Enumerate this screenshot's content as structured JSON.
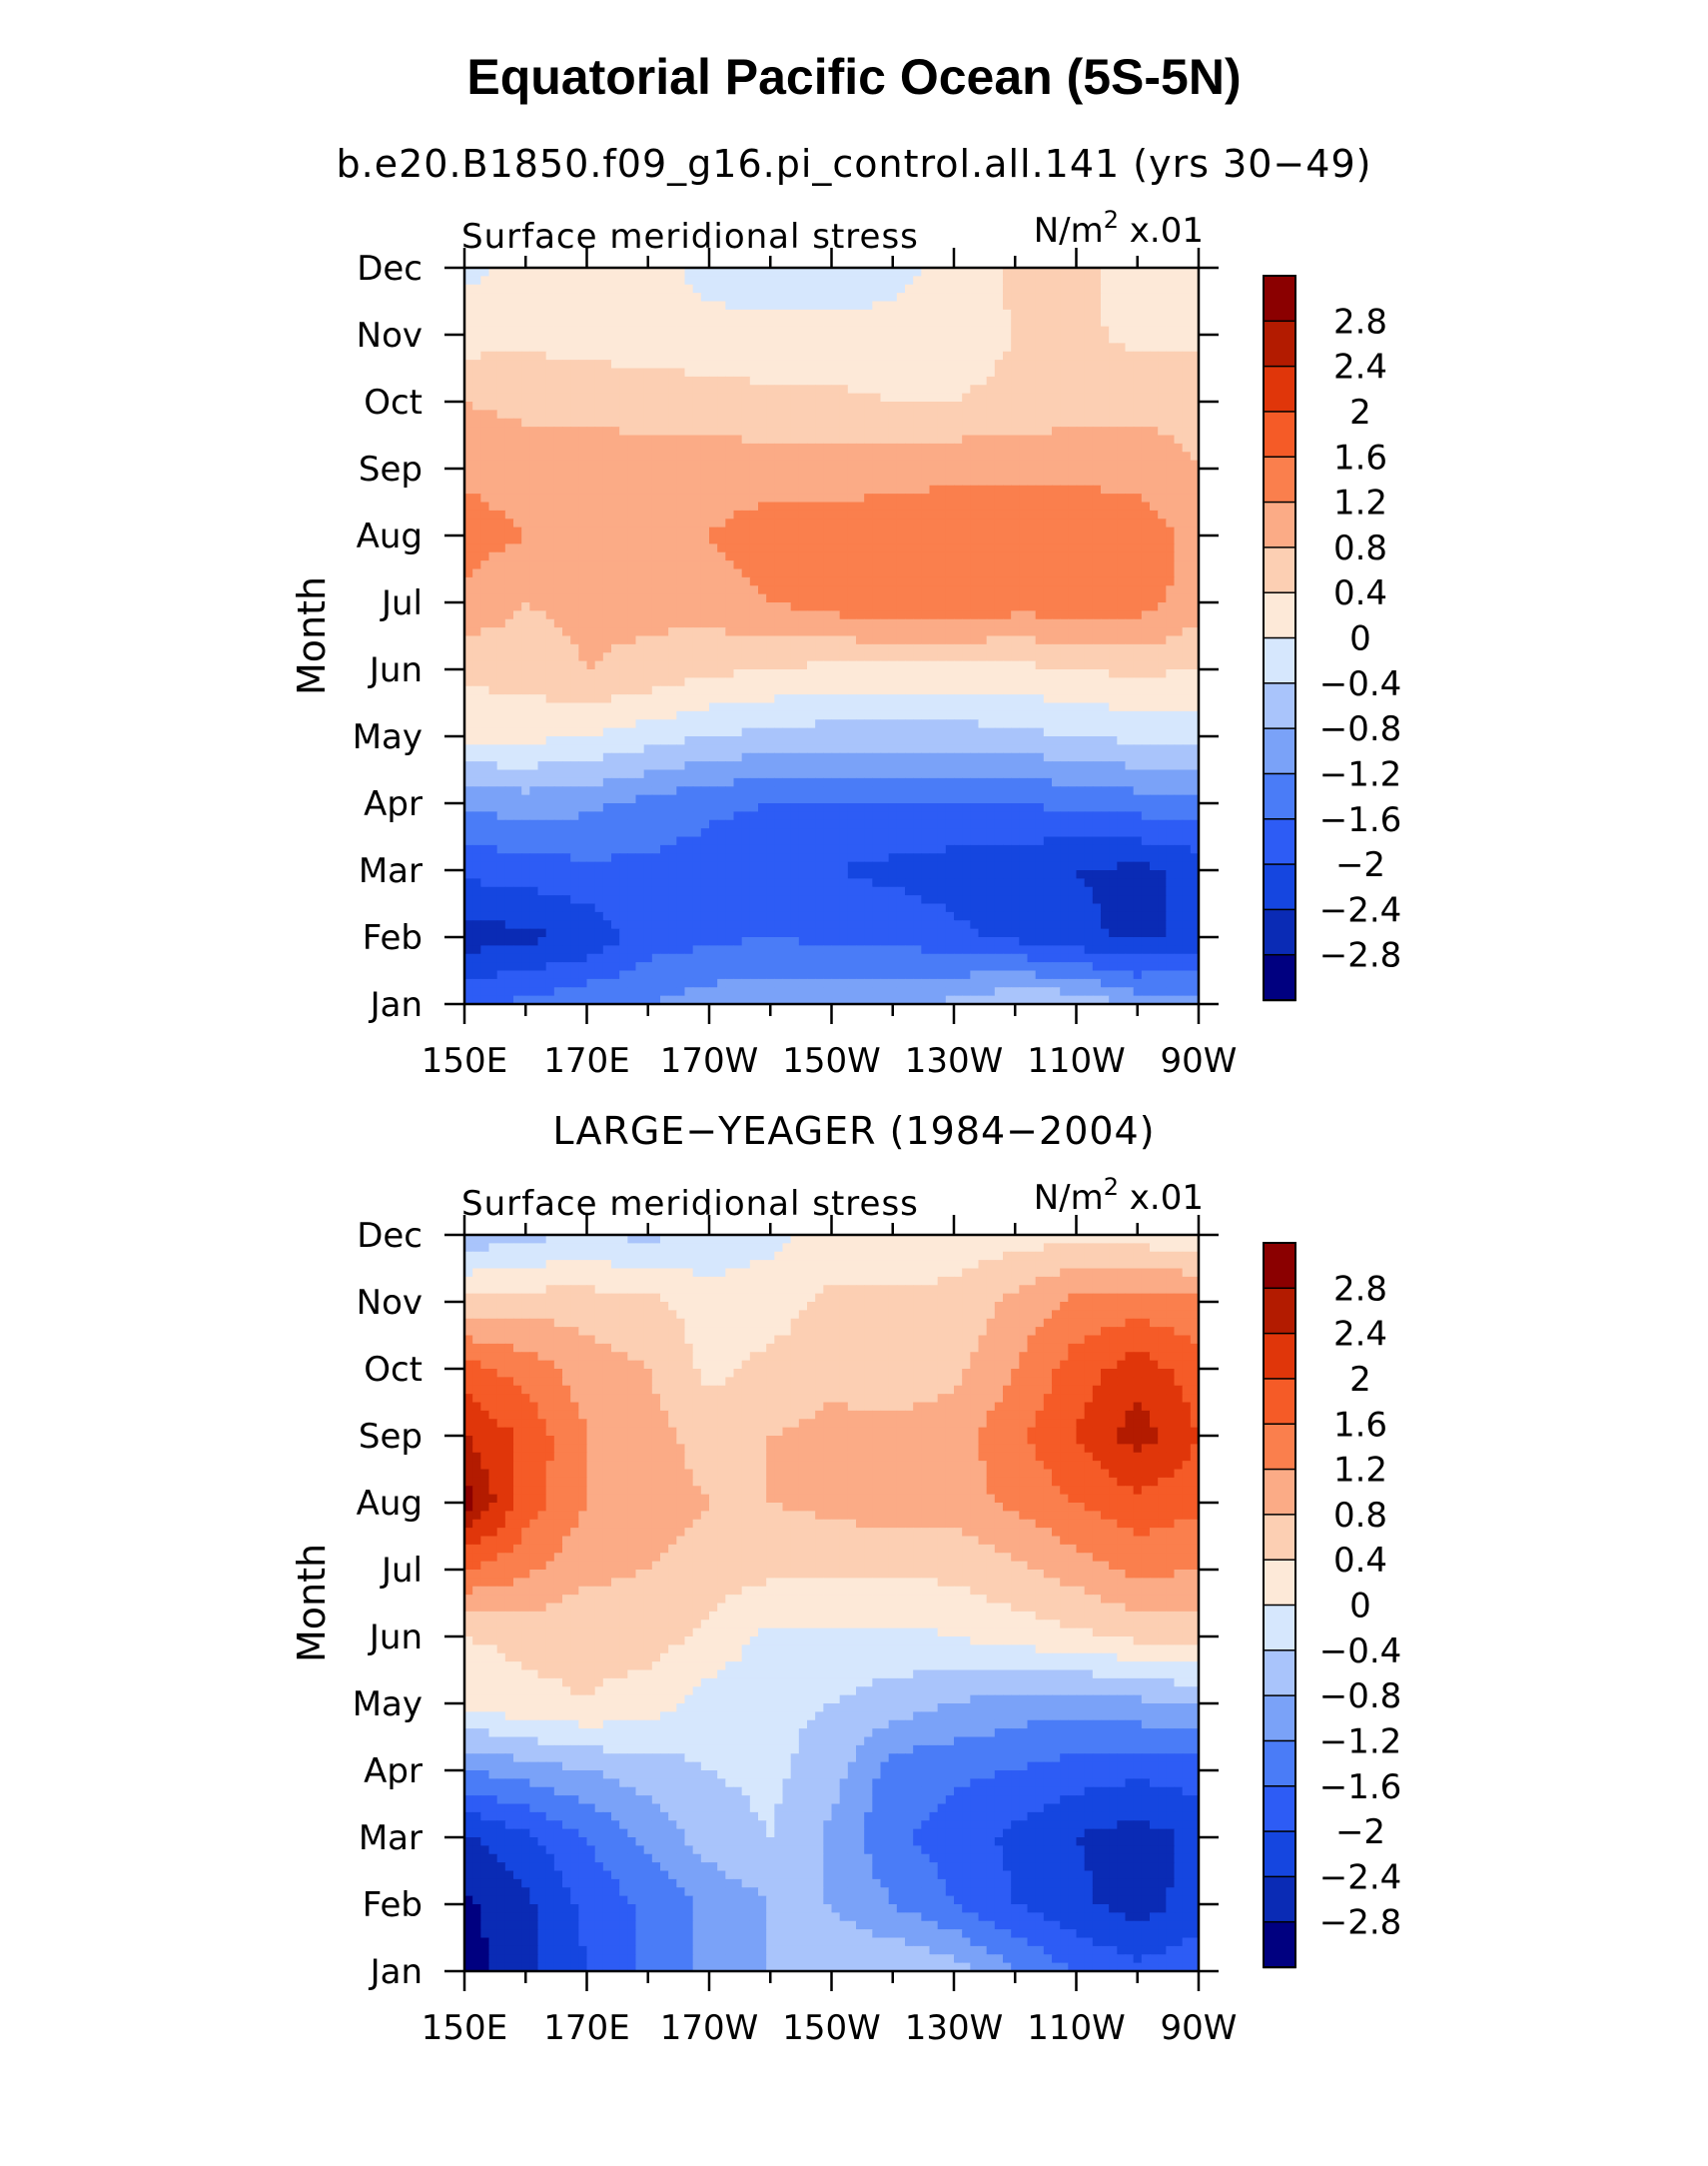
{
  "figure": {
    "title": "Equatorial Pacific Ocean (5S-5N)"
  },
  "colors": {
    "levels": [
      -2.8,
      -2.4,
      -2.0,
      -1.6,
      -1.2,
      -0.8,
      -0.4,
      0,
      0.4,
      0.8,
      1.2,
      1.6,
      2.0,
      2.4,
      2.8
    ],
    "fills": [
      "#000080",
      "#0a2bb5",
      "#1546e0",
      "#2d5cf5",
      "#4a7cf7",
      "#7aa2f8",
      "#a9c4fb",
      "#d6e7fd",
      "#fde9d8",
      "#fccfb3",
      "#fbab86",
      "#fa7f4d",
      "#f55b27",
      "#e0360a",
      "#b31b00",
      "#8b0000"
    ]
  },
  "chart_data": [
    {
      "type": "heatmap",
      "title": "b.e20.B1850.f09_g16.pi_control.all.141 (yrs 30−49)",
      "subtitle": "Surface meridional stress",
      "units": "N/m² x.01",
      "units_base": "N/m",
      "units_sup": "2",
      "units_suffix": " x.01",
      "ylabel": "Month",
      "xlabel": "",
      "x_ticks": [
        "150E",
        "170E",
        "170W",
        "150W",
        "130W",
        "110W",
        "90W"
      ],
      "x_tick_deg": [
        150,
        170,
        190,
        210,
        230,
        250,
        270
      ],
      "xlim": [
        150,
        270
      ],
      "y_ticks": [
        "Jan",
        "Feb",
        "Mar",
        "Apr",
        "May",
        "Jun",
        "Jul",
        "Aug",
        "Sep",
        "Oct",
        "Nov",
        "Dec"
      ],
      "colorbar_labels": [
        "2.8",
        "2.4",
        "2",
        "1.6",
        "1.2",
        "0.8",
        "0.4",
        "0",
        "−0.4",
        "−0.8",
        "−1.2",
        "−1.6",
        "−2",
        "−2.4",
        "−2.8"
      ],
      "lon": [
        150,
        160,
        170,
        180,
        190,
        200,
        210,
        220,
        230,
        240,
        250,
        260,
        270
      ],
      "values": [
        [
          -1.7,
          -1.5,
          -1.3,
          -1.2,
          -1.0,
          -0.9,
          -0.9,
          -0.9,
          -0.7,
          -0.4,
          -0.5,
          -0.9,
          -1.0
        ],
        [
          -2.6,
          -2.5,
          -2.3,
          -1.8,
          -1.7,
          -1.6,
          -1.7,
          -1.7,
          -1.9,
          -2.1,
          -2.3,
          -2.5,
          -2.3
        ],
        [
          -1.9,
          -1.8,
          -1.7,
          -1.7,
          -1.8,
          -1.9,
          -2.0,
          -2.1,
          -2.2,
          -2.3,
          -2.4,
          -2.5,
          -2.3
        ],
        [
          -1.1,
          -1.0,
          -1.1,
          -1.3,
          -1.5,
          -1.6,
          -1.6,
          -1.6,
          -1.6,
          -1.6,
          -1.5,
          -1.4,
          -1.3
        ],
        [
          0.1,
          0.1,
          0.0,
          -0.2,
          -0.4,
          -0.5,
          -0.6,
          -0.6,
          -0.6,
          -0.5,
          -0.4,
          -0.3,
          -0.3
        ],
        [
          0.5,
          0.6,
          0.8,
          0.7,
          0.5,
          0.4,
          0.3,
          0.3,
          0.3,
          0.3,
          0.4,
          0.5,
          0.4
        ],
        [
          1.1,
          0.8,
          0.9,
          0.9,
          1.0,
          1.2,
          1.4,
          1.5,
          1.5,
          1.4,
          1.4,
          1.4,
          1.0
        ],
        [
          1.4,
          1.2,
          1.1,
          1.1,
          1.2,
          1.4,
          1.4,
          1.5,
          1.5,
          1.5,
          1.5,
          1.5,
          1.0
        ],
        [
          1.1,
          1.0,
          1.0,
          1.0,
          1.0,
          1.0,
          1.0,
          1.0,
          1.1,
          1.1,
          1.1,
          1.0,
          0.8
        ],
        [
          0.8,
          0.7,
          0.7,
          0.6,
          0.6,
          0.5,
          0.5,
          0.4,
          0.4,
          0.5,
          0.6,
          0.7,
          0.7
        ],
        [
          0.2,
          0.3,
          0.2,
          0.2,
          0.1,
          0.1,
          0.1,
          0.1,
          0.2,
          0.4,
          0.5,
          0.3,
          0.3
        ],
        [
          -0.1,
          0.1,
          0.2,
          0.1,
          -0.1,
          -0.2,
          -0.2,
          -0.1,
          0.1,
          0.5,
          0.5,
          0.2,
          0.2
        ]
      ]
    },
    {
      "type": "heatmap",
      "title": "LARGE−YEAGER (1984−2004)",
      "subtitle": "Surface meridional stress",
      "units": "N/m² x.01",
      "units_base": "N/m",
      "units_sup": "2",
      "units_suffix": " x.01",
      "ylabel": "Month",
      "xlabel": "",
      "x_ticks": [
        "150E",
        "170E",
        "170W",
        "150W",
        "130W",
        "110W",
        "90W"
      ],
      "x_tick_deg": [
        150,
        170,
        190,
        210,
        230,
        250,
        270
      ],
      "xlim": [
        150,
        270
      ],
      "y_ticks": [
        "Jan",
        "Feb",
        "Mar",
        "Apr",
        "May",
        "Jun",
        "Jul",
        "Aug",
        "Sep",
        "Oct",
        "Nov",
        "Dec"
      ],
      "colorbar_labels": [
        "2.8",
        "2.4",
        "2",
        "1.6",
        "1.2",
        "0.8",
        "0.4",
        "0",
        "−0.4",
        "−0.8",
        "−1.2",
        "−1.6",
        "−2",
        "−2.4",
        "−2.8"
      ],
      "lon": [
        150,
        160,
        170,
        180,
        190,
        200,
        210,
        220,
        230,
        240,
        250,
        260,
        270
      ],
      "values": [
        [
          -3.0,
          -2.5,
          -2.0,
          -1.5,
          -1.1,
          -0.8,
          -0.5,
          -0.4,
          -0.6,
          -1.2,
          -1.6,
          -1.9,
          -1.7
        ],
        [
          -2.9,
          -2.5,
          -1.9,
          -1.5,
          -1.1,
          -0.8,
          -0.8,
          -1.2,
          -1.6,
          -2.0,
          -2.3,
          -2.6,
          -2.2
        ],
        [
          -2.5,
          -2.1,
          -1.6,
          -1.1,
          -0.6,
          -0.4,
          -0.9,
          -1.5,
          -1.8,
          -2.1,
          -2.4,
          -2.6,
          -2.3
        ],
        [
          -1.2,
          -1.0,
          -0.8,
          -0.6,
          -0.4,
          -0.3,
          -0.6,
          -1.4,
          -1.5,
          -1.6,
          -1.8,
          -1.9,
          -1.8
        ],
        [
          0.1,
          0.3,
          0.4,
          0.2,
          -0.2,
          -0.3,
          -0.4,
          -0.6,
          -0.8,
          -1.0,
          -1.0,
          -0.9,
          -0.8
        ],
        [
          0.4,
          0.5,
          0.5,
          0.6,
          0.3,
          -0.1,
          -0.1,
          -0.1,
          0.0,
          0.2,
          0.3,
          0.5,
          0.6
        ],
        [
          1.6,
          1.3,
          0.9,
          0.8,
          0.6,
          0.5,
          0.5,
          0.5,
          0.5,
          0.7,
          1.0,
          1.3,
          1.2
        ],
        [
          3.0,
          1.8,
          1.2,
          1.0,
          0.8,
          0.8,
          0.9,
          1.0,
          1.0,
          1.3,
          1.6,
          1.9,
          1.7
        ],
        [
          2.4,
          1.9,
          1.2,
          1.0,
          0.6,
          0.8,
          0.9,
          0.9,
          1.0,
          1.5,
          2.0,
          2.6,
          2.0
        ],
        [
          1.8,
          1.4,
          1.0,
          0.8,
          0.3,
          0.5,
          0.7,
          0.6,
          0.7,
          1.2,
          1.8,
          2.2,
          1.8
        ],
        [
          0.5,
          0.6,
          0.6,
          0.5,
          0.2,
          0.2,
          0.5,
          0.5,
          0.5,
          0.9,
          1.3,
          1.4,
          1.3
        ],
        [
          -0.7,
          -0.5,
          -0.4,
          -0.5,
          -0.3,
          -0.1,
          0.1,
          0.1,
          0.2,
          0.2,
          0.3,
          0.2,
          0.1
        ]
      ]
    }
  ]
}
